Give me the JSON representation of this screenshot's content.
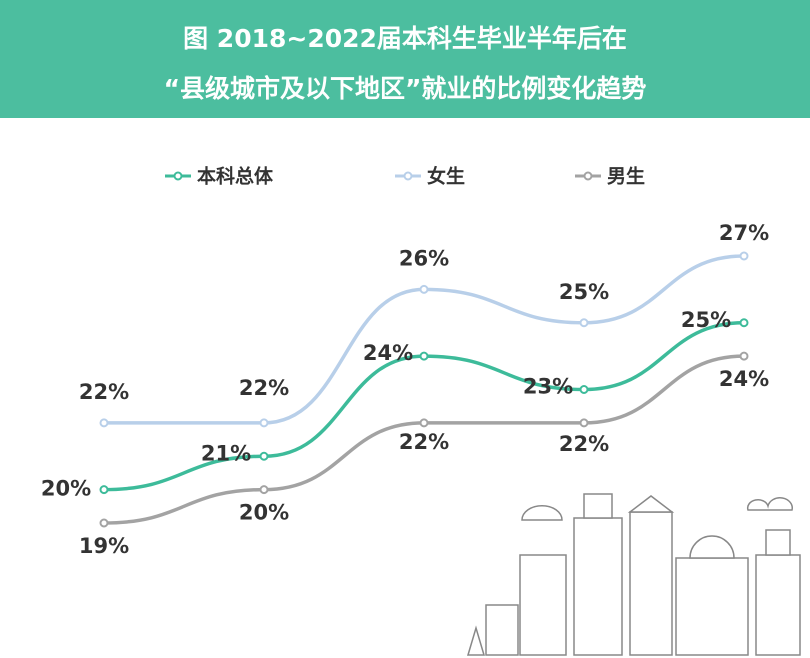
{
  "chart_data": {
    "type": "line",
    "title": [
      "图 2018~2022届本科生毕业半年后在",
      "“县级城市及以下地区”就业的比例变化趋势"
    ],
    "categories": [
      null,
      null,
      null,
      null,
      null
    ],
    "series": [
      {
        "name": "本科总体",
        "color": "#3dbb9a",
        "values": [
          20,
          21,
          24,
          23,
          25
        ],
        "value_labels": [
          "20%",
          "21%",
          "24%",
          "23%",
          "25%"
        ]
      },
      {
        "name": "女生",
        "color": "#b8cfe9",
        "values": [
          22,
          22,
          26,
          25,
          27
        ],
        "value_labels": [
          "22%",
          "22%",
          "26%",
          "25%",
          "27%"
        ]
      },
      {
        "name": "男生",
        "color": "#a3a3a3",
        "values": [
          19,
          20,
          22,
          22,
          24
        ],
        "value_labels": [
          "19%",
          "20%",
          "22%",
          "22%",
          "24%"
        ]
      }
    ]
  }
}
